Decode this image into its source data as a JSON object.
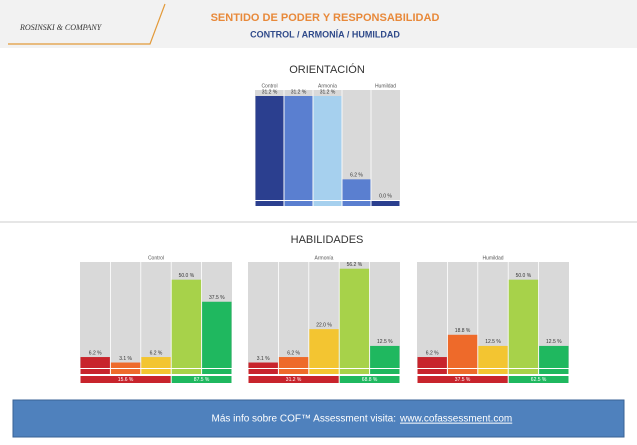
{
  "header": {
    "logo": "ROSINSKI & COMPANY",
    "title": "SENTIDO DE PODER Y RESPONSABILIDAD",
    "subtitle": "CONTROL / ARMONÍA / HUMILDAD"
  },
  "section_titles": [
    "ORIENTACIÓN",
    "HABILIDADES"
  ],
  "chart_data": [
    {
      "type": "bar",
      "categories": [
        "Control",
        null,
        "Armonía",
        null,
        "Humildad"
      ],
      "values": [
        31.2,
        31.2,
        31.2,
        6.2,
        0.0
      ],
      "value_labels": [
        "31.2 %",
        "31.2 %",
        "31.2 %",
        "6.2 %",
        "0.0 %"
      ],
      "colors": [
        "#2b3f8f",
        "#5a7fd0",
        "#a6d0ee",
        "#5a7fd0",
        "#2b3f8f"
      ],
      "ylim": [
        0,
        33
      ]
    },
    {
      "type": "bar",
      "title": "Control",
      "values": [
        6.2,
        3.1,
        6.2,
        50.0,
        37.5
      ],
      "value_labels": [
        "6.2 %",
        "3.1 %",
        "6.2 %",
        "50.0 %",
        "37.5 %"
      ],
      "colors": [
        "#c8242c",
        "#ee6a2a",
        "#f3c531",
        "#a7d24a",
        "#1fb85f"
      ],
      "ylim": [
        0,
        60
      ],
      "summary": {
        "values": [
          15.6,
          87.5
        ],
        "value_labels": [
          "15.6 %",
          "87.5 %"
        ],
        "colors": [
          "#c8242c",
          "#1fb85f"
        ]
      }
    },
    {
      "type": "bar",
      "title": "Armonía",
      "values": [
        3.1,
        6.2,
        22.0,
        56.2,
        12.5
      ],
      "value_labels": [
        "3.1 %",
        "6.2 %",
        "22.0 %",
        "56.2 %",
        "12.5 %"
      ],
      "colors": [
        "#c8242c",
        "#ee6a2a",
        "#f3c531",
        "#a7d24a",
        "#1fb85f"
      ],
      "ylim": [
        0,
        60
      ],
      "summary": {
        "values": [
          31.2,
          68.8
        ],
        "value_labels": [
          "31.2 %",
          "68.8 %"
        ],
        "colors": [
          "#c8242c",
          "#1fb85f"
        ]
      }
    },
    {
      "type": "bar",
      "title": "Humildad",
      "values": [
        6.2,
        18.8,
        12.5,
        50.0,
        12.5
      ],
      "value_labels": [
        "6.2 %",
        "18.8 %",
        "12.5 %",
        "50.0 %",
        "12.5 %"
      ],
      "colors": [
        "#c8242c",
        "#ee6a2a",
        "#f3c531",
        "#a7d24a",
        "#1fb85f"
      ],
      "ylim": [
        0,
        60
      ],
      "summary": {
        "values": [
          37.5,
          62.5
        ],
        "value_labels": [
          "37.5 %",
          "62.5 %"
        ],
        "colors": [
          "#c8242c",
          "#1fb85f"
        ]
      }
    }
  ],
  "footer": {
    "text": "Más info sobre COF™ Assessment visita:",
    "link": "www.cofassessment.com"
  }
}
